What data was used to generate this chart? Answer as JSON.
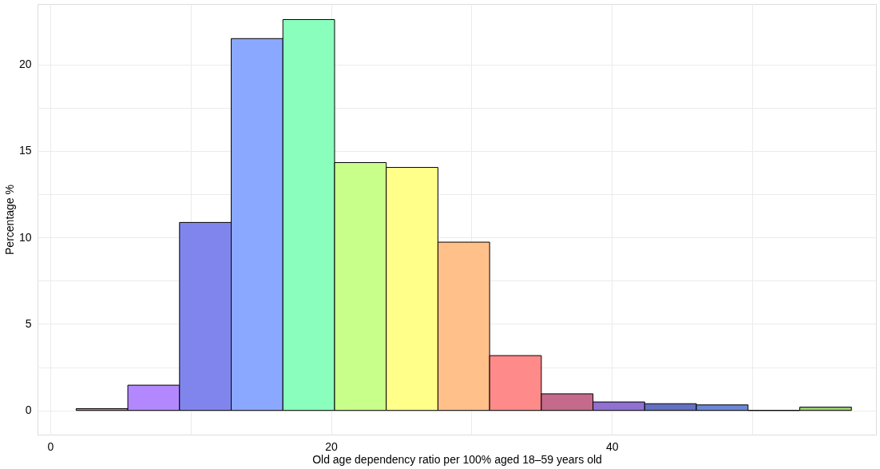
{
  "chart_data": {
    "type": "histogram",
    "xlabel": "Old age dependency ratio per 100% aged 18–59 years old",
    "ylabel": "Percentage %",
    "bins": [
      1.85,
      5.53,
      9.21,
      12.89,
      16.57,
      20.25,
      23.93,
      27.61,
      31.29,
      34.97,
      38.65,
      42.33,
      46.01,
      49.69,
      53.37,
      57.05
    ],
    "values": [
      0.1,
      1.46,
      10.87,
      21.5,
      22.6,
      14.33,
      14.05,
      9.73,
      3.17,
      0.96,
      0.49,
      0.39,
      0.32,
      0,
      0.19
    ],
    "colors": [
      "#e87a9a",
      "#b388ff",
      "#8085ee",
      "#8aa8ff",
      "#8affbd",
      "#c8ff8a",
      "#ffff8a",
      "#ffc08a",
      "#ff8a8a",
      "#c46a8a",
      "#9070d0",
      "#6470c0",
      "#6a88d8",
      "#000000",
      "#9ad070"
    ],
    "xlim": [
      -0.9,
      58.8
    ],
    "ylim": [
      -1.4,
      23.5
    ],
    "xticks": [
      0,
      {
        "value": 10,
        "label": null
      },
      20,
      {
        "value": 30,
        "label": null
      },
      40,
      {
        "value": 50,
        "label": null
      }
    ],
    "yticks": [
      0,
      {
        "value": 2.5,
        "label": null
      },
      5,
      {
        "value": 7.5,
        "label": null
      },
      10,
      {
        "value": 12.5,
        "label": null
      },
      15,
      {
        "value": 17.5,
        "label": null
      },
      20
    ],
    "grid": true
  }
}
